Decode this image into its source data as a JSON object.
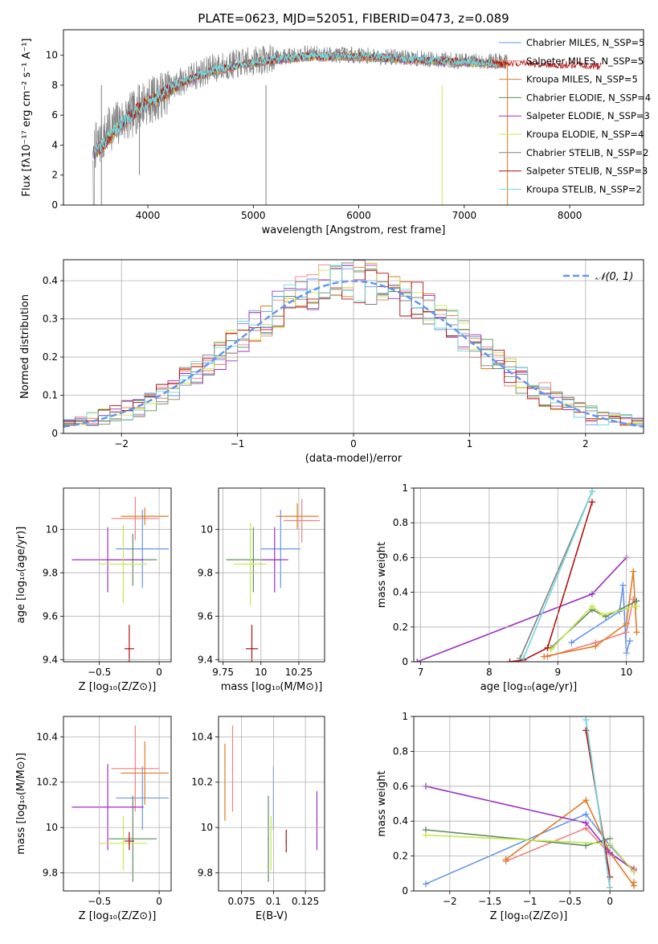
{
  "figure_title": "PLATE=0623, MJD=52051, FIBERID=0473, z=0.089",
  "chart_data": [
    {
      "id": "spectrum",
      "type": "line",
      "title": "PLATE=0623, MJD=52051, FIBERID=0473, z=0.089",
      "xlabel": "wavelength [Angstrom, rest frame]",
      "ylabel": "Flux [fλ10⁻¹⁷ erg cm⁻² s⁻¹ A⁻¹]",
      "xlim": [
        3200,
        8700
      ],
      "ylim": [
        0,
        11.7
      ],
      "xticks": [
        4000,
        5000,
        6000,
        7000,
        8000
      ],
      "yticks": [
        0,
        2,
        4,
        6,
        8,
        10
      ],
      "grid": false,
      "legend_position": "right",
      "data_note": "approximate continuum shape read from plot",
      "continuum": {
        "x": [
          3480,
          3550,
          3650,
          3750,
          3850,
          3950,
          4100,
          4300,
          4600,
          5000,
          5500,
          6000,
          6500,
          7000,
          7400
        ],
        "y": [
          3.8,
          4.2,
          5.2,
          5.6,
          6.0,
          6.8,
          7.2,
          8.2,
          9.1,
          9.6,
          10.1,
          10.0,
          9.8,
          9.6,
          9.6
        ]
      },
      "model_continuum": {
        "x": [
          3480,
          3550,
          3650,
          3750,
          3850,
          3950,
          4100,
          4300,
          4600,
          5000,
          5500,
          6000,
          6500,
          7000,
          7400,
          8000,
          8300
        ],
        "y": [
          3.4,
          3.8,
          4.6,
          5.4,
          6.0,
          6.6,
          7.2,
          8.1,
          8.9,
          9.5,
          9.9,
          9.9,
          9.7,
          9.5,
          9.4,
          9.3,
          9.2
        ]
      },
      "series": [
        {
          "name": "Chabrier MILES, N_SSP=5",
          "color": "#6495ED"
        },
        {
          "name": "Salpeter MILES, N_SSP=5",
          "color": "#F08080"
        },
        {
          "name": "Kroupa MILES, N_SSP=5",
          "color": "#E07B20"
        },
        {
          "name": "Chabrier ELODIE, N_SSP=4",
          "color": "#5E8C5E"
        },
        {
          "name": "Salpeter ELODIE, N_SSP=3",
          "color": "#9B30C0"
        },
        {
          "name": "Kroupa ELODIE, N_SSP=4",
          "color": "#C8E850"
        },
        {
          "name": "Chabrier STELIB, N_SSP=2",
          "color": "#808080"
        },
        {
          "name": "Salpeter STELIB, N_SSP=3",
          "color": "#B01010"
        },
        {
          "name": "Kroupa STELIB, N_SSP=2",
          "color": "#70D8E0"
        }
      ]
    },
    {
      "id": "residuals",
      "type": "line",
      "xlabel": "(data-model)/error",
      "ylabel": "Normed distribution",
      "xlim": [
        -2.5,
        2.5
      ],
      "ylim": [
        0,
        0.455
      ],
      "xticks": [
        -2,
        -1,
        0,
        1,
        2
      ],
      "yticks": [
        0.0,
        0.1,
        0.2,
        0.3,
        0.4
      ],
      "grid": true,
      "legend_position": "top-right",
      "gaussian": {
        "name": "𝒩(0, 1)",
        "color": "#6495ED",
        "mean": 0,
        "sigma": 1
      },
      "histogram_bin_width": 0.1
    },
    {
      "id": "age_vs_Z",
      "type": "scatter",
      "xlabel": "Z [log₁₀(Z/Z⊙)]",
      "ylabel": "age  [log₁₀(age/yr)]",
      "xlim": [
        -0.8,
        0.1
      ],
      "ylim": [
        9.39,
        10.19
      ],
      "xticks": [
        -0.5,
        0.0
      ],
      "yticks": [
        9.4,
        9.6,
        9.8,
        10.0
      ],
      "grid": true,
      "points": [
        {
          "series": "Chabrier MILES",
          "color": "#6495ED",
          "x": -0.14,
          "y": 9.91,
          "xerr": 0.22,
          "yerr": 0.18
        },
        {
          "series": "Salpeter MILES",
          "color": "#F08080",
          "x": -0.2,
          "y": 10.05,
          "xerr": 0.2,
          "yerr": 0.1
        },
        {
          "series": "Kroupa MILES",
          "color": "#E07B20",
          "x": -0.12,
          "y": 10.06,
          "xerr": 0.2,
          "yerr": 0.04
        },
        {
          "series": "Chabrier ELODIE",
          "color": "#5E8C5E",
          "x": -0.22,
          "y": 9.86,
          "xerr": 0.2,
          "yerr": 0.12
        },
        {
          "series": "Salpeter ELODIE",
          "color": "#9B30C0",
          "x": -0.43,
          "y": 9.86,
          "xerr": 0.3,
          "yerr": 0.15
        },
        {
          "series": "Kroupa ELODIE",
          "color": "#C8E850",
          "x": -0.3,
          "y": 9.84,
          "xerr": 0.2,
          "yerr": 0.18
        },
        {
          "series": "Salpeter STELIB",
          "color": "#B01010",
          "x": -0.25,
          "y": 9.45,
          "xerr": 0.04,
          "yerr": 0.11
        }
      ]
    },
    {
      "id": "age_vs_mass",
      "type": "scatter",
      "xlabel": "mass [log₁₀(M/M⊙)]",
      "ylabel": "",
      "xlim": [
        9.72,
        10.42
      ],
      "ylim": [
        9.39,
        10.19
      ],
      "xticks": [
        9.75,
        10.0,
        10.25
      ],
      "yticks": [
        9.4,
        9.6,
        9.8,
        10.0
      ],
      "grid": true,
      "points": [
        {
          "color": "#6495ED",
          "x": 10.13,
          "y": 9.91,
          "xerr": 0.13,
          "yerr": 0.18
        },
        {
          "color": "#F08080",
          "x": 10.27,
          "y": 10.04,
          "xerr": 0.12,
          "yerr": 0.1
        },
        {
          "color": "#E07B20",
          "x": 10.24,
          "y": 10.06,
          "xerr": 0.14,
          "yerr": 0.06
        },
        {
          "color": "#5E8C5E",
          "x": 9.95,
          "y": 9.86,
          "xerr": 0.18,
          "yerr": 0.15
        },
        {
          "color": "#9B30C0",
          "x": 10.09,
          "y": 9.86,
          "xerr": 0.09,
          "yerr": 0.15
        },
        {
          "color": "#C8E850",
          "x": 9.93,
          "y": 9.84,
          "xerr": 0.11,
          "yerr": 0.19
        },
        {
          "color": "#B01010",
          "x": 9.94,
          "y": 9.45,
          "xerr": 0.04,
          "yerr": 0.11
        }
      ]
    },
    {
      "id": "massweight_vs_age",
      "type": "line",
      "xlabel": "age  [log₁₀(age/yr)]",
      "ylabel": "mass weight",
      "xlim": [
        6.9,
        10.25
      ],
      "ylim": [
        0,
        1.0
      ],
      "xticks": [
        7,
        8,
        9,
        10
      ],
      "yticks": [
        0.0,
        0.2,
        0.4,
        0.6,
        0.8,
        1.0
      ],
      "grid": true,
      "series": [
        {
          "name": "Chabrier MILES",
          "color": "#6495ED",
          "x": [
            9.2,
            9.9,
            9.95,
            10.0,
            10.05
          ],
          "y": [
            0.11,
            0.29,
            0.44,
            0.05,
            0.12
          ]
        },
        {
          "name": "Salpeter MILES",
          "color": "#F08080",
          "x": [
            8.85,
            9.55,
            10.0,
            10.1
          ],
          "y": [
            0.03,
            0.11,
            0.17,
            0.36
          ]
        },
        {
          "name": "Kroupa MILES",
          "color": "#E07B20",
          "x": [
            8.8,
            9.55,
            10.0,
            10.1,
            10.15
          ],
          "y": [
            0.03,
            0.09,
            0.22,
            0.52,
            0.17
          ]
        },
        {
          "name": "Chabrier ELODIE",
          "color": "#5E8C5E",
          "x": [
            8.9,
            9.5,
            9.7,
            10.15
          ],
          "y": [
            0.08,
            0.3,
            0.26,
            0.35
          ]
        },
        {
          "name": "Salpeter ELODIE",
          "color": "#9B30C0",
          "x": [
            6.95,
            9.5,
            10.0
          ],
          "y": [
            0.0,
            0.39,
            0.6
          ]
        },
        {
          "name": "Kroupa ELODIE",
          "color": "#C8E850",
          "x": [
            8.9,
            9.5,
            9.65,
            10.15
          ],
          "y": [
            0.07,
            0.32,
            0.27,
            0.32
          ]
        },
        {
          "name": "Chabrier STELIB",
          "color": "#808080",
          "x": [
            8.45,
            9.5
          ],
          "y": [
            0.02,
            0.98
          ]
        },
        {
          "name": "Salpeter STELIB",
          "color": "#B01010",
          "x": [
            8.3,
            8.5,
            8.85,
            9.5
          ],
          "y": [
            0.0,
            0.01,
            0.08,
            0.92
          ]
        },
        {
          "name": "Kroupa STELIB",
          "color": "#70D8E0",
          "x": [
            8.5,
            9.5
          ],
          "y": [
            0.02,
            0.98
          ]
        }
      ]
    },
    {
      "id": "mass_vs_Z",
      "type": "scatter",
      "xlabel": "Z [log₁₀(Z/Z⊙)]",
      "ylabel": "mass [log₁₀(M/M⊙)]",
      "xlim": [
        -0.8,
        0.1
      ],
      "ylim": [
        9.72,
        10.49
      ],
      "xticks": [
        -0.5,
        0.0
      ],
      "yticks": [
        9.8,
        10.0,
        10.2,
        10.4
      ],
      "grid": true,
      "points": [
        {
          "color": "#6495ED",
          "x": -0.14,
          "y": 10.13,
          "xerr": 0.22,
          "yerr": 0.14
        },
        {
          "color": "#F08080",
          "x": -0.2,
          "y": 10.26,
          "xerr": 0.2,
          "yerr": 0.19
        },
        {
          "color": "#E07B20",
          "x": -0.12,
          "y": 10.24,
          "xerr": 0.2,
          "yerr": 0.14
        },
        {
          "color": "#5E8C5E",
          "x": -0.22,
          "y": 9.95,
          "xerr": 0.2,
          "yerr": 0.19
        },
        {
          "color": "#9B30C0",
          "x": -0.43,
          "y": 10.09,
          "xerr": 0.3,
          "yerr": 0.19
        },
        {
          "color": "#C8E850",
          "x": -0.3,
          "y": 9.93,
          "xerr": 0.2,
          "yerr": 0.12
        },
        {
          "color": "#B01010",
          "x": -0.25,
          "y": 9.94,
          "xerr": 0.04,
          "yerr": 0.04
        }
      ]
    },
    {
      "id": "mass_vs_EBV",
      "type": "scatter",
      "xlabel": "E(B-V)",
      "ylabel": "",
      "xlim": [
        0.057,
        0.14
      ],
      "ylim": [
        9.72,
        10.49
      ],
      "xticks": [
        0.075,
        0.1,
        0.125
      ],
      "yticks": [
        9.8,
        10.0,
        10.2,
        10.4
      ],
      "grid": true,
      "points": [
        {
          "color": "#6495ED",
          "x": 0.1,
          "y": 10.13,
          "yerr": 0.14
        },
        {
          "color": "#F08080",
          "x": 0.068,
          "y": 10.26,
          "yerr": 0.19
        },
        {
          "color": "#E07B20",
          "x": 0.062,
          "y": 10.2,
          "yerr": 0.17
        },
        {
          "color": "#5E8C5E",
          "x": 0.096,
          "y": 9.95,
          "yerr": 0.19
        },
        {
          "color": "#9B30C0",
          "x": 0.134,
          "y": 10.03,
          "yerr": 0.13
        },
        {
          "color": "#C8E850",
          "x": 0.098,
          "y": 9.93,
          "yerr": 0.12
        },
        {
          "color": "#B01010",
          "x": 0.11,
          "y": 9.94,
          "yerr": 0.05
        }
      ]
    },
    {
      "id": "massweight_vs_Z",
      "type": "line",
      "xlabel": "Z [log₁₀(Z/Z⊙)]",
      "ylabel": "mass weight",
      "xlim": [
        -2.45,
        0.42
      ],
      "ylim": [
        0,
        1.0
      ],
      "xticks": [
        -2.0,
        -1.5,
        -1.0,
        -0.5,
        0.0
      ],
      "yticks": [
        0.0,
        0.2,
        0.4,
        0.6,
        0.8,
        1.0
      ],
      "grid": true,
      "series": [
        {
          "name": "Chabrier MILES",
          "color": "#6495ED",
          "x": [
            -2.3,
            -0.3,
            0.0,
            0.3
          ],
          "y": [
            0.04,
            0.44,
            0.26,
            0.11
          ]
        },
        {
          "name": "Salpeter MILES",
          "color": "#F08080",
          "x": [
            -1.3,
            -0.3,
            0.0,
            0.3
          ],
          "y": [
            0.17,
            0.36,
            0.21,
            0.13
          ]
        },
        {
          "name": "Kroupa MILES",
          "color": "#E07B20",
          "x": [
            -1.3,
            -0.3,
            0.0,
            0.3,
            0.3
          ],
          "y": [
            0.18,
            0.52,
            0.22,
            0.03,
            0.05
          ]
        },
        {
          "name": "Chabrier ELODIE",
          "color": "#5E8C5E",
          "x": [
            -2.3,
            -0.3,
            0.0
          ],
          "y": [
            0.35,
            0.26,
            0.3
          ]
        },
        {
          "name": "Salpeter ELODIE",
          "color": "#9B30C0",
          "x": [
            -2.3,
            -0.3,
            0.0,
            0.3
          ],
          "y": [
            0.6,
            0.39,
            0.22,
            0.12
          ]
        },
        {
          "name": "Kroupa ELODIE",
          "color": "#C8E850",
          "x": [
            -2.3,
            0.0,
            0.3
          ],
          "y": [
            0.32,
            0.27,
            0.11
          ]
        },
        {
          "name": "Chabrier STELIB",
          "color": "#808080",
          "x": [
            -0.3,
            0.0
          ],
          "y": [
            0.98,
            0.02
          ]
        },
        {
          "name": "Salpeter STELIB",
          "color": "#B01010",
          "x": [
            -0.3,
            0.0
          ],
          "y": [
            0.92,
            0.08
          ]
        },
        {
          "name": "Kroupa STELIB",
          "color": "#70D8E0",
          "x": [
            -0.3,
            0.0
          ],
          "y": [
            0.98,
            0.02
          ]
        }
      ]
    }
  ]
}
